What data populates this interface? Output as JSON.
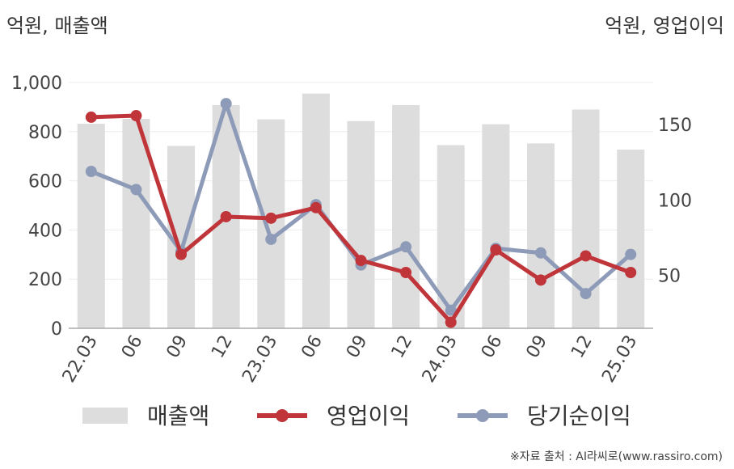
{
  "chart_data": {
    "type": "bar+line",
    "left_unit": "억원, 매출액",
    "right_unit": "억원, 영업이익",
    "categories": [
      "22.03",
      "06",
      "09",
      "12",
      "23.03",
      "06",
      "09",
      "12",
      "24.03",
      "06",
      "09",
      "12",
      "25.03"
    ],
    "left_ylim": [
      0,
      1000
    ],
    "left_ticks": [
      0,
      200,
      400,
      600,
      800,
      1000
    ],
    "left_tick_labels": [
      "0",
      "200",
      "400",
      "600",
      "800",
      "1,000"
    ],
    "right_ylim": [
      15,
      178
    ],
    "right_ticks": [
      50,
      100,
      150
    ],
    "right_tick_labels": [
      "50",
      "100",
      "150"
    ],
    "grid": true,
    "legend_position": "bottom",
    "series": [
      {
        "name": "매출액",
        "axis": "left",
        "kind": "bar",
        "color": "#dddddd",
        "values": [
          832,
          852,
          742,
          908,
          850,
          955,
          843,
          908,
          745,
          830,
          752,
          890,
          727
        ]
      },
      {
        "name": "영업이익",
        "axis": "right",
        "kind": "line",
        "color": "#c0353a",
        "values": [
          155,
          156,
          64,
          89,
          88,
          95,
          60,
          52,
          19,
          67,
          47,
          63,
          52
        ]
      },
      {
        "name": "당기순이익",
        "axis": "right",
        "kind": "line",
        "color": "#8e9bb8",
        "values": [
          119,
          107,
          66,
          164,
          74,
          97,
          57,
          69,
          27,
          68,
          65,
          38,
          64
        ]
      }
    ]
  },
  "source_text": "※자료 출처 : AI라씨로(www.rassiro.com)"
}
